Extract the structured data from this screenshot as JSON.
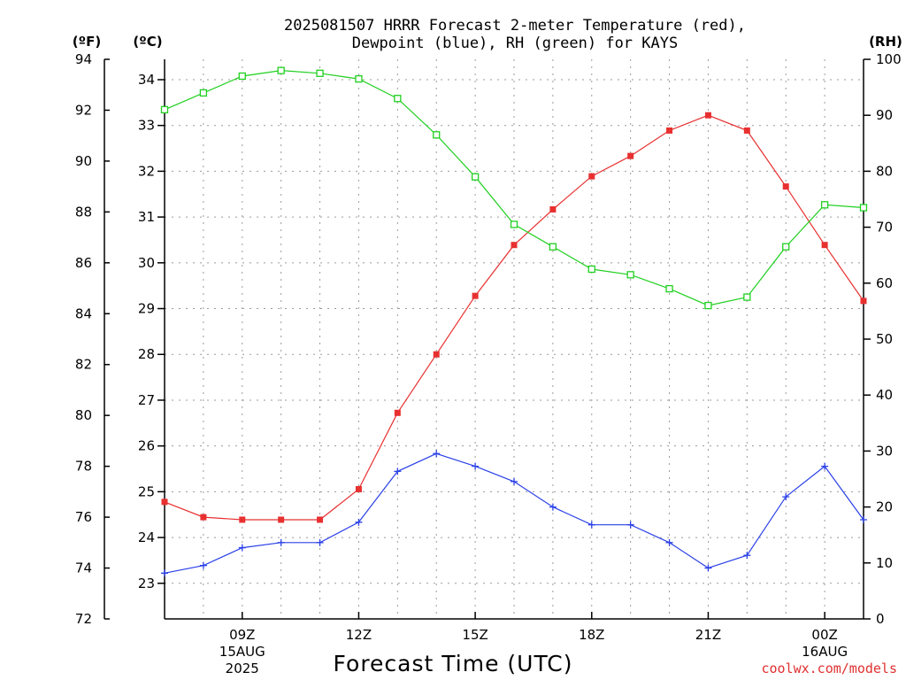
{
  "chart_data": {
    "type": "line",
    "title": [
      "2025081507 HRRR Forecast 2-meter Temperature (red),",
      "Dewpoint (blue), RH (green) for KAYS"
    ],
    "xlabel": "Forecast Time (UTC)",
    "credit": "coolwx.com/models",
    "units": {
      "left_f": "(ºF)",
      "left_c": "(ºC)",
      "right": "(RH)"
    },
    "x_hours": [
      7,
      8,
      9,
      10,
      11,
      12,
      13,
      14,
      15,
      16,
      17,
      18,
      19,
      20,
      21,
      22,
      23,
      24,
      25
    ],
    "x_range": [
      7,
      25
    ],
    "x_ticks": [
      {
        "hour": 9,
        "lines": [
          "09Z",
          "15AUG",
          "2025"
        ]
      },
      {
        "hour": 12,
        "lines": [
          "12Z"
        ]
      },
      {
        "hour": 15,
        "lines": [
          "15Z"
        ]
      },
      {
        "hour": 18,
        "lines": [
          "18Z"
        ]
      },
      {
        "hour": 21,
        "lines": [
          "21Z"
        ]
      },
      {
        "hour": 24,
        "lines": [
          "00Z",
          "16AUG"
        ]
      }
    ],
    "y_left_f": {
      "range": [
        72,
        94
      ],
      "ticks": [
        "72",
        "74",
        "76",
        "78",
        "80",
        "82",
        "84",
        "86",
        "88",
        "90",
        "92",
        "94"
      ]
    },
    "y_left_c": {
      "ticks": [
        "23",
        "24",
        "25",
        "26",
        "27",
        "28",
        "29",
        "30",
        "31",
        "32",
        "33",
        "34"
      ]
    },
    "y_right_rh": {
      "range": [
        0,
        100
      ],
      "ticks": [
        "0",
        "10",
        "20",
        "30",
        "40",
        "50",
        "60",
        "70",
        "80",
        "90",
        "100"
      ]
    },
    "grid": true,
    "series": [
      {
        "name": "Temperature",
        "color": "#e83030",
        "marker": "filled-square",
        "axis": "F",
        "values": [
          76.6,
          76.0,
          75.9,
          75.9,
          75.9,
          77.1,
          80.1,
          82.4,
          84.7,
          86.7,
          88.1,
          89.4,
          90.2,
          91.2,
          91.8,
          91.2,
          89.0,
          86.7,
          84.5
        ]
      },
      {
        "name": "Dewpoint",
        "color": "#2a40e8",
        "marker": "plus",
        "axis": "F",
        "values": [
          73.8,
          74.1,
          74.8,
          75.0,
          75.0,
          75.8,
          77.8,
          78.5,
          78.0,
          77.4,
          76.4,
          75.7,
          75.7,
          75.0,
          74.0,
          74.5,
          76.8,
          78.0,
          75.9
        ]
      },
      {
        "name": "RH",
        "color": "#20d020",
        "marker": "open-square",
        "axis": "RH",
        "values": [
          91,
          94,
          97,
          98,
          97.5,
          96.5,
          93,
          86.5,
          79,
          70.5,
          66.5,
          62.5,
          61.5,
          59,
          56,
          57.5,
          66.5,
          74,
          73.5
        ]
      }
    ]
  }
}
